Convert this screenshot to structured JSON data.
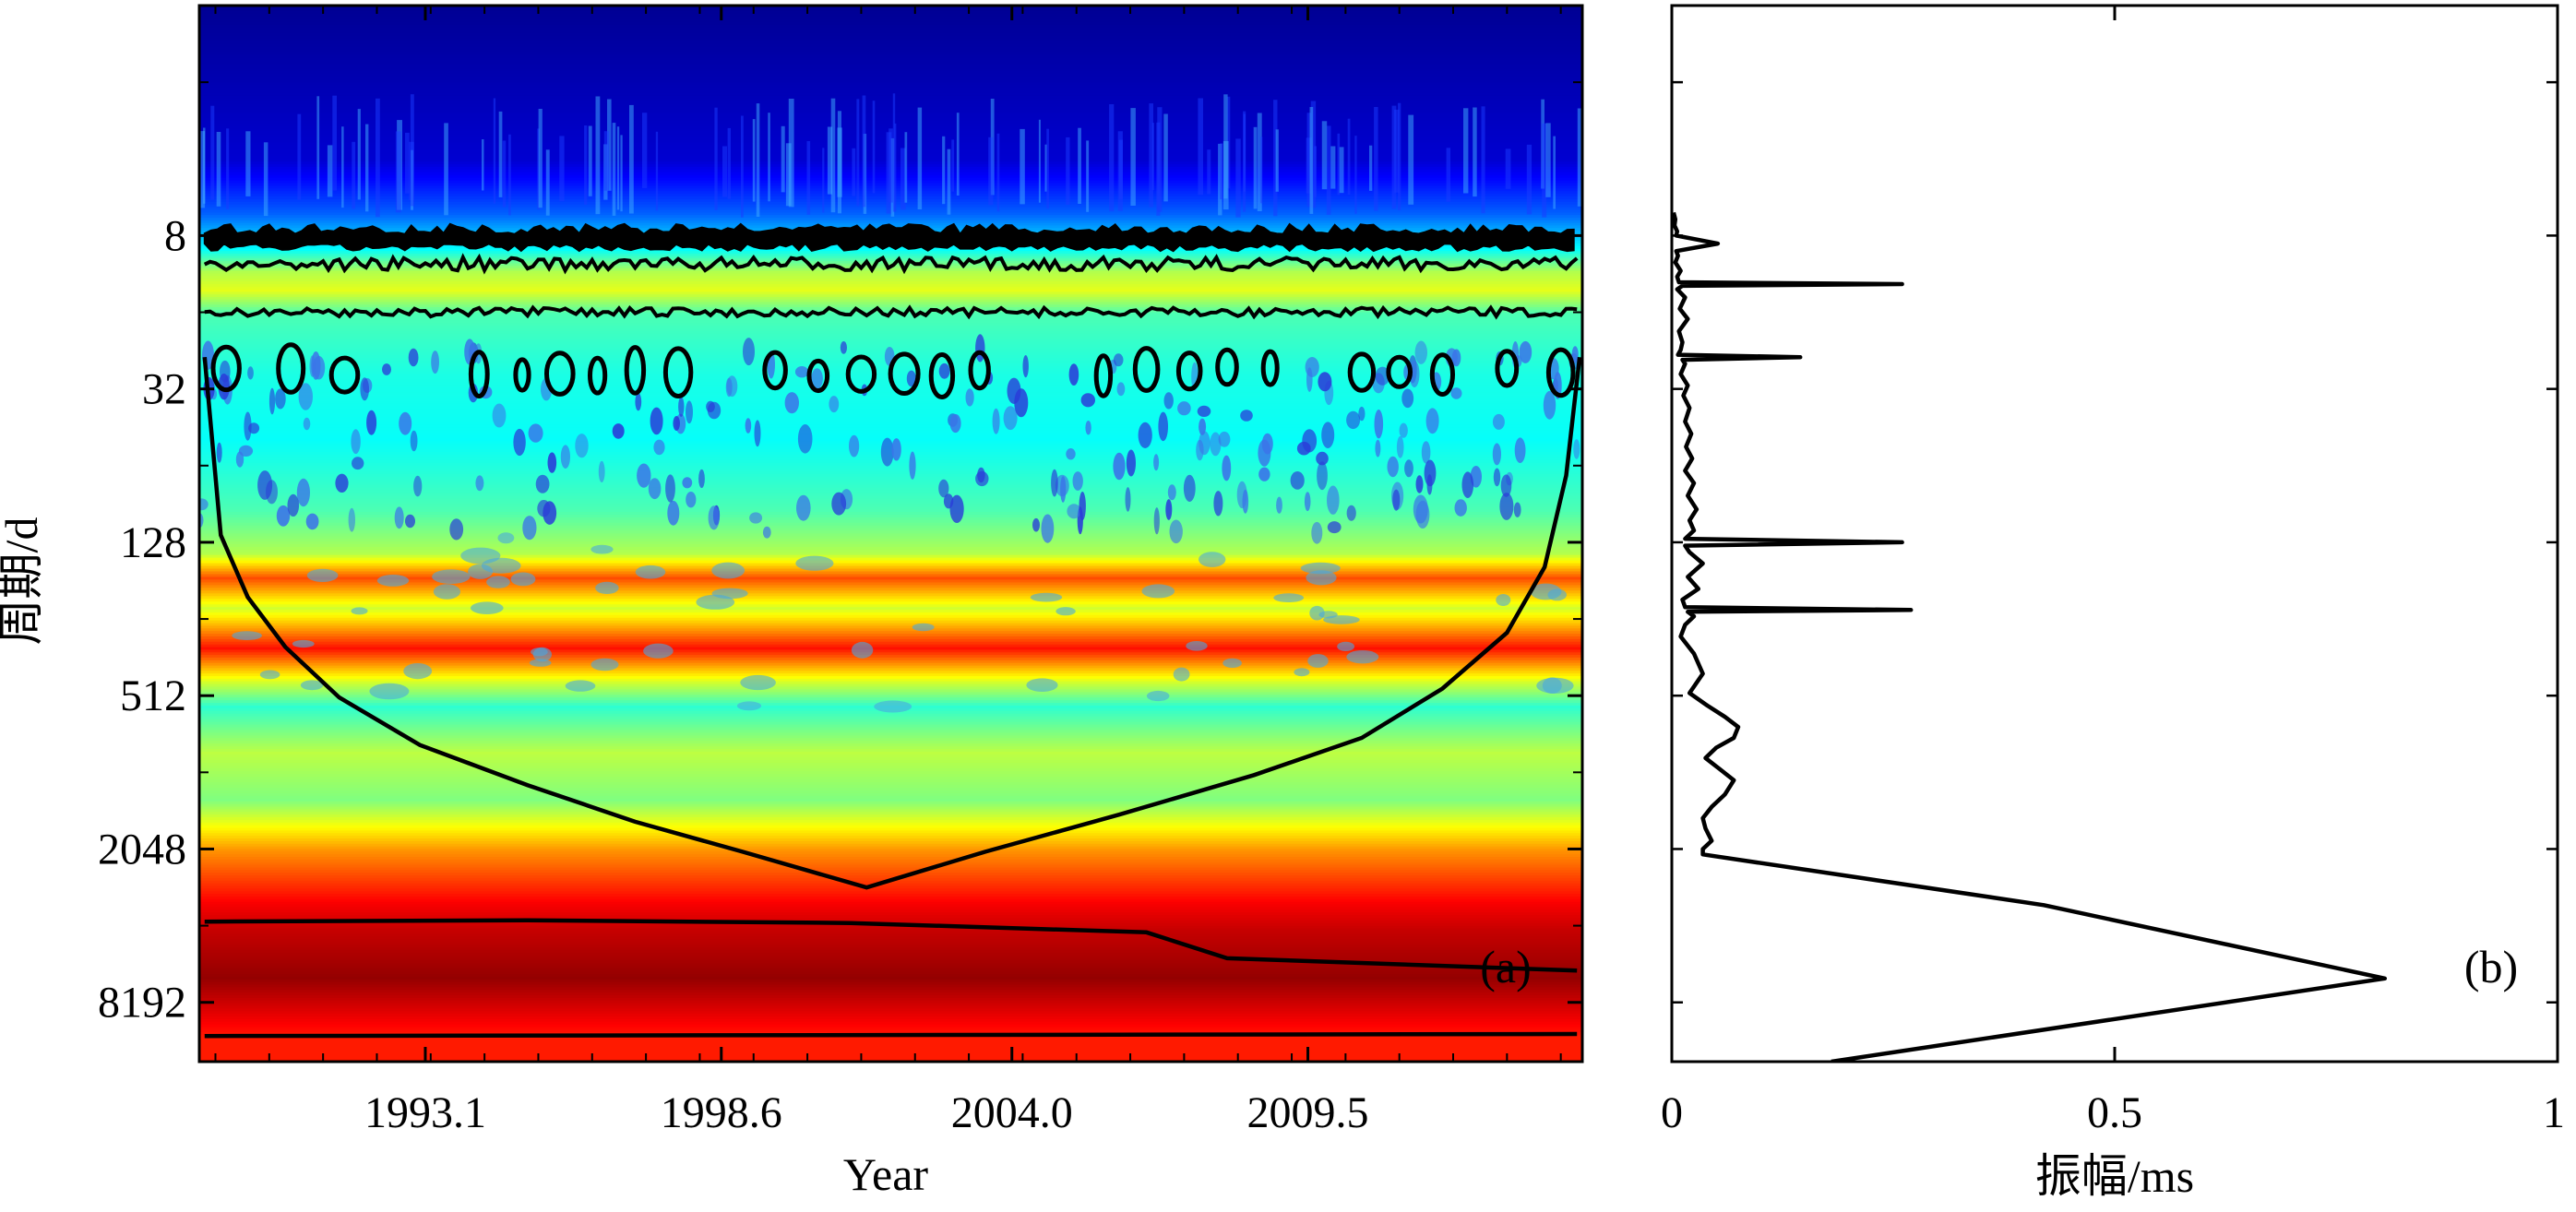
{
  "chart_data": [
    {
      "panel": "a",
      "type": "heatmap",
      "panel_label": "(a)",
      "xlabel": "Year",
      "ylabel": "周期/d",
      "xlim": [
        1988.9,
        2014.6
      ],
      "ylim": [
        1,
        14000
      ],
      "y_scale": "log2",
      "x_ticks": [
        "1993.1",
        "1998.6",
        "2004.0",
        "2009.5"
      ],
      "x_tick_values": [
        1993.1,
        1998.6,
        2004.0,
        2009.5
      ],
      "y_ticks": [
        "8",
        "32",
        "128",
        "512",
        "2048",
        "8192"
      ],
      "y_tick_values": [
        8,
        32,
        128,
        512,
        2048,
        8192
      ],
      "colormap": [
        "#00007f",
        "#0000ff",
        "#00ffff",
        "#ffff00",
        "#ff0000",
        "#7f0000"
      ],
      "bands": [
        {
          "period": 1.0,
          "level": 0.02
        },
        {
          "period": 4.0,
          "level": 0.08
        },
        {
          "period": 6.5,
          "level": 0.22
        },
        {
          "period": 9.0,
          "level": 0.38
        },
        {
          "period": 11.0,
          "level": 0.55
        },
        {
          "period": 13.0,
          "level": 0.6
        },
        {
          "period": 16.0,
          "level": 0.45
        },
        {
          "period": 28.0,
          "level": 0.4
        },
        {
          "period": 50.0,
          "level": 0.38
        },
        {
          "period": 95.0,
          "level": 0.45
        },
        {
          "period": 140.0,
          "level": 0.55
        },
        {
          "period": 175.0,
          "level": 0.8
        },
        {
          "period": 230.0,
          "level": 0.58
        },
        {
          "period": 330.0,
          "level": 0.86
        },
        {
          "period": 450.0,
          "level": 0.58
        },
        {
          "period": 560.0,
          "level": 0.42
        },
        {
          "period": 850.0,
          "level": 0.56
        },
        {
          "period": 1300.0,
          "level": 0.5
        },
        {
          "period": 2048.0,
          "level": 0.73
        },
        {
          "period": 3300.0,
          "level": 0.88
        },
        {
          "period": 4200.0,
          "level": 0.93
        },
        {
          "period": 6500.0,
          "level": 0.98
        },
        {
          "period": 11000.0,
          "level": 0.85
        },
        {
          "period": 14000.0,
          "level": 0.85
        }
      ],
      "cone_of_influence": {
        "x": [
          1989.0,
          1989.3,
          1989.8,
          1990.5,
          1991.5,
          1993.0,
          1995.0,
          1997.0,
          1999.0,
          2001.3,
          2003.5,
          2006.0,
          2008.5,
          2010.5,
          2012.0,
          2013.2,
          2013.9,
          2014.3,
          2014.55
        ],
        "period": [
          24,
          120,
          210,
          330,
          520,
          800,
          1150,
          1600,
          2100,
          2900,
          2100,
          1500,
          1050,
          750,
          480,
          290,
          160,
          70,
          24
        ]
      },
      "contours": [
        {
          "name": "upper-band-contour-top",
          "period_min": 7.2,
          "period_max": 9.2,
          "x_range": [
            1989.0,
            2014.5
          ]
        },
        {
          "name": "upper-band-contour-bottom",
          "period_min": 9.5,
          "period_max": 11.2,
          "x_range": [
            1989.0,
            2014.5
          ]
        },
        {
          "name": "band-contour-16d",
          "period_min": 15.0,
          "period_max": 17.0,
          "x_range": [
            1989.0,
            2014.5
          ]
        },
        {
          "name": "low-frequency-contour-top",
          "x": [
            1989.0,
            1995.0,
            2001.0,
            2006.5,
            2008.0,
            2014.5
          ],
          "period": [
            3950,
            3900,
            4000,
            4350,
            5500,
            6150
          ]
        },
        {
          "name": "low-frequency-contour-bottom",
          "x": [
            1989.0,
            2014.5
          ],
          "period": [
            11100,
            10900
          ]
        }
      ],
      "islands_at_period": 28,
      "island_years": [
        1989.4,
        1990.6,
        1991.6,
        1994.1,
        1994.9,
        1995.6,
        1996.3,
        1997.0,
        1997.8,
        1999.6,
        2000.4,
        2001.2,
        2002.0,
        2002.7,
        2003.4,
        2005.7,
        2006.5,
        2007.3,
        2008.0,
        2008.8,
        2010.5,
        2011.2,
        2012.0,
        2013.2,
        2014.2
      ]
    },
    {
      "panel": "b",
      "type": "line",
      "panel_label": "(b)",
      "xlabel": "振幅/ms",
      "xlim": [
        0,
        1
      ],
      "ylim": [
        1,
        14000
      ],
      "y_scale": "log2",
      "x_ticks": [
        "0",
        "0.5",
        "1"
      ],
      "x_tick_values": [
        0,
        0.5,
        1
      ],
      "y_minor_tick_values": [
        2,
        8,
        32,
        128,
        512,
        2048,
        8192
      ],
      "series": [
        {
          "name": "amplitude-spectrum",
          "period": [
            6.5,
            6.9,
            7.3,
            7.7,
            8.0,
            8.6,
            9.2,
            9.6,
            10.2,
            11.0,
            11.6,
            12.2,
            12.4,
            12.6,
            13.0,
            14.0,
            15.5,
            17.0,
            19.0,
            21.0,
            22.5,
            23.5,
            24.0,
            24.6,
            25.5,
            28.0,
            31.0,
            34.0,
            38.0,
            43.0,
            48.0,
            54.0,
            60.0,
            67.0,
            75.0,
            84.0,
            95.0,
            105.0,
            115.0,
            124.0,
            128.0,
            132.0,
            140.0,
            155.0,
            175.0,
            195.0,
            215.0,
            230.0,
            236.0,
            240.0,
            250.0,
            270.0,
            300.0,
            350.0,
            420.0,
            500.0,
            560.0,
            620.0,
            680.0,
            750.0,
            820.0,
            900.0,
            1000.0,
            1100.0,
            1250.0,
            1400.0,
            1550.0,
            1700.0,
            1900.0,
            2048.0,
            2150.0,
            3400.0,
            6600.0,
            14000.0
          ],
          "amplitude": [
            0.002,
            0.004,
            0.003,
            0.006,
            0.005,
            0.052,
            0.005,
            0.007,
            0.004,
            0.01,
            0.006,
            0.008,
            0.26,
            0.012,
            0.006,
            0.015,
            0.009,
            0.018,
            0.008,
            0.012,
            0.01,
            0.007,
            0.145,
            0.012,
            0.015,
            0.01,
            0.018,
            0.013,
            0.02,
            0.015,
            0.022,
            0.016,
            0.023,
            0.015,
            0.025,
            0.018,
            0.028,
            0.02,
            0.025,
            0.015,
            0.26,
            0.015,
            0.02,
            0.035,
            0.018,
            0.03,
            0.012,
            0.015,
            0.27,
            0.018,
            0.025,
            0.015,
            0.01,
            0.025,
            0.035,
            0.02,
            0.04,
            0.06,
            0.075,
            0.07,
            0.05,
            0.038,
            0.055,
            0.07,
            0.06,
            0.045,
            0.035,
            0.038,
            0.045,
            0.035,
            0.035,
            0.42,
            0.805,
            0.18
          ]
        }
      ]
    }
  ]
}
